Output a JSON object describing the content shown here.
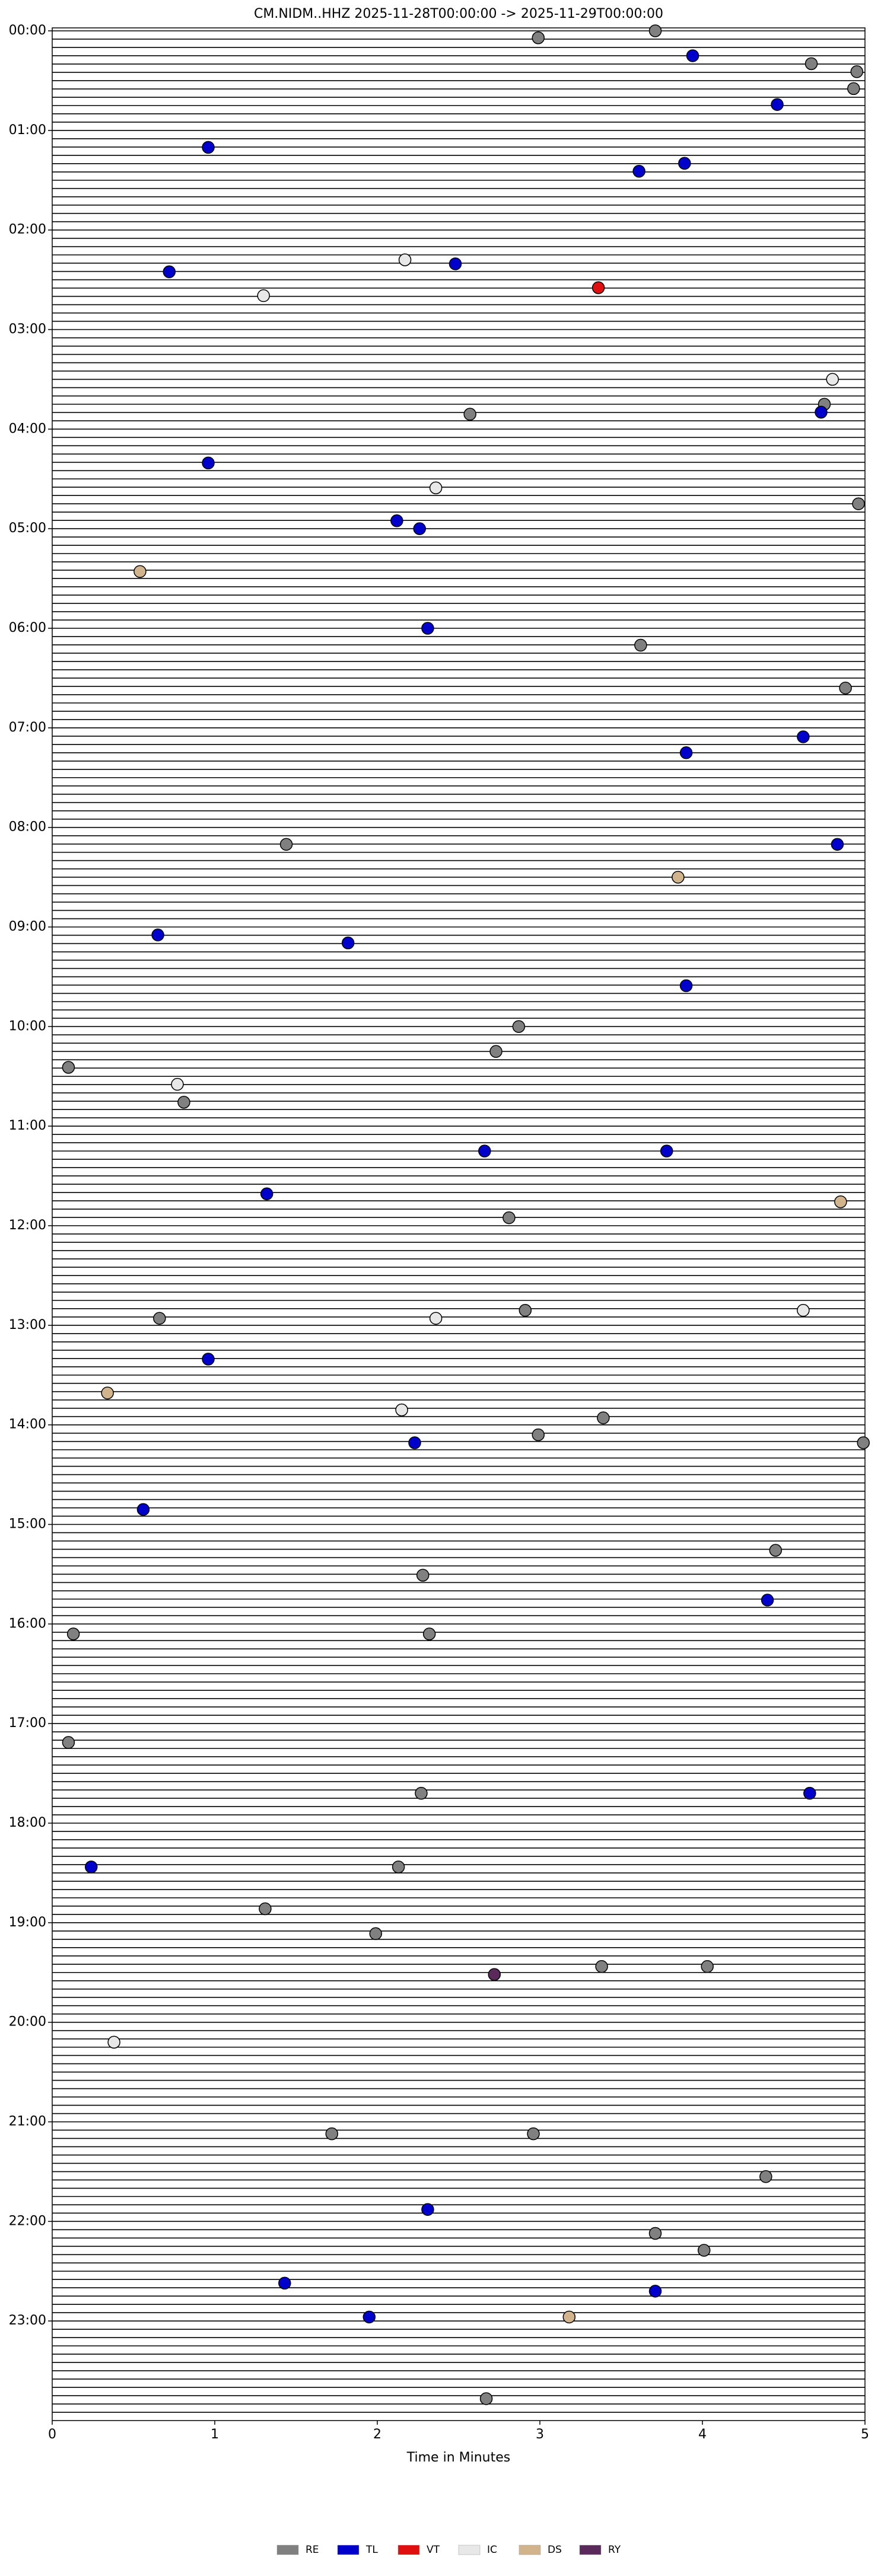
{
  "chart_data": {
    "type": "helicorder",
    "title": "CM.NIDM..HHZ  2025-11-28T00:00:00 -> 2025-11-29T00:00:00",
    "xlabel": "Time in Minutes",
    "xlim": [
      0,
      5
    ],
    "xticks": [
      0,
      1,
      2,
      3,
      4,
      5
    ],
    "ylim": [
      0,
      24
    ],
    "yticks": [
      {
        "value": 0,
        "label": "00:00"
      },
      {
        "value": 1,
        "label": "01:00"
      },
      {
        "value": 2,
        "label": "02:00"
      },
      {
        "value": 3,
        "label": "03:00"
      },
      {
        "value": 4,
        "label": "04:00"
      },
      {
        "value": 5,
        "label": "05:00"
      },
      {
        "value": 6,
        "label": "06:00"
      },
      {
        "value": 7,
        "label": "07:00"
      },
      {
        "value": 8,
        "label": "08:00"
      },
      {
        "value": 9,
        "label": "09:00"
      },
      {
        "value": 10,
        "label": "10:00"
      },
      {
        "value": 11,
        "label": "11:00"
      },
      {
        "value": 12,
        "label": "12:00"
      },
      {
        "value": 13,
        "label": "13:00"
      },
      {
        "value": 14,
        "label": "14:00"
      },
      {
        "value": 15,
        "label": "15:00"
      },
      {
        "value": 16,
        "label": "16:00"
      },
      {
        "value": 17,
        "label": "17:00"
      },
      {
        "value": 18,
        "label": "18:00"
      },
      {
        "value": 19,
        "label": "19:00"
      },
      {
        "value": 20,
        "label": "20:00"
      },
      {
        "value": 21,
        "label": "21:00"
      },
      {
        "value": 22,
        "label": "22:00"
      },
      {
        "value": 23,
        "label": "23:00"
      }
    ],
    "legend": "bottom-center",
    "series": [
      {
        "name": "RE",
        "color": "#808080",
        "x": [
          2.99,
          3.71,
          4.67,
          4.95,
          4.93,
          2.57,
          4.75,
          4.96,
          3.62,
          4.88,
          1.44,
          2.87,
          2.73,
          0.1,
          0.81,
          2.81,
          2.91,
          0.66,
          3.39,
          2.99,
          4.99,
          4.45,
          2.28,
          0.13,
          2.32,
          0.1,
          2.27,
          2.13,
          1.31,
          1.99,
          3.38,
          4.03,
          1.72,
          2.96,
          4.39,
          3.71,
          4.01,
          2.67
        ],
        "y": [
          0.07,
          0.0,
          0.33,
          0.41,
          0.58,
          3.85,
          3.75,
          4.75,
          6.17,
          6.6,
          8.17,
          10.0,
          10.25,
          10.41,
          10.76,
          11.92,
          12.85,
          12.93,
          13.93,
          14.1,
          14.18,
          15.26,
          15.51,
          16.1,
          16.1,
          17.19,
          17.7,
          18.44,
          18.86,
          19.11,
          19.44,
          19.44,
          21.12,
          21.12,
          21.55,
          22.12,
          22.29,
          23.78
        ]
      },
      {
        "name": "TL",
        "color": "#0000cc",
        "x": [
          3.94,
          4.46,
          0.96,
          3.89,
          3.61,
          0.72,
          2.48,
          4.73,
          0.96,
          2.12,
          2.26,
          2.31,
          4.62,
          3.9,
          4.83,
          0.65,
          1.82,
          3.9,
          2.66,
          3.78,
          1.32,
          0.96,
          2.23,
          0.56,
          4.4,
          4.66,
          0.24,
          2.31,
          1.43,
          3.71,
          1.95
        ],
        "y": [
          0.25,
          0.74,
          1.17,
          1.33,
          1.41,
          2.42,
          2.34,
          3.83,
          4.34,
          4.92,
          5.0,
          6.0,
          7.09,
          7.25,
          8.17,
          9.08,
          9.16,
          9.59,
          11.25,
          11.25,
          11.68,
          13.34,
          14.18,
          14.85,
          15.76,
          17.7,
          18.44,
          21.88,
          22.62,
          22.7,
          22.96
        ]
      },
      {
        "name": "VT",
        "color": "#e01010",
        "x": [
          3.36
        ],
        "y": [
          2.58
        ]
      },
      {
        "name": "IC",
        "color": "#e8e8e8",
        "x": [
          2.17,
          1.3,
          4.8,
          2.36,
          0.77,
          2.36,
          4.62,
          2.15,
          0.38
        ],
        "y": [
          2.3,
          2.66,
          3.5,
          4.59,
          10.58,
          12.93,
          12.85,
          13.85,
          20.2
        ]
      },
      {
        "name": "DS",
        "color": "#d2b48c",
        "x": [
          0.54,
          3.85,
          4.85,
          0.34,
          3.18
        ],
        "y": [
          5.43,
          8.5,
          11.76,
          13.68,
          22.96
        ]
      },
      {
        "name": "RY",
        "color": "#5a2a5a",
        "x": [
          2.72
        ],
        "y": [
          19.52
        ]
      }
    ]
  }
}
